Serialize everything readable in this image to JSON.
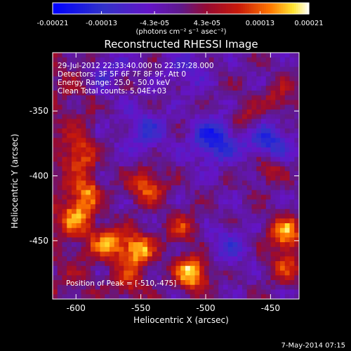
{
  "colorbar": {
    "ticks": [
      {
        "label": "-0.00021",
        "value": -0.00021
      },
      {
        "label": "-0.00013",
        "value": -0.00013
      },
      {
        "label": "-4.3e-05",
        "value": -4.3e-05
      },
      {
        "label": "4.3e-05",
        "value": 4.3e-05
      },
      {
        "label": "0.00013",
        "value": 0.00013
      },
      {
        "label": "0.00021",
        "value": 0.00021
      }
    ],
    "range": [
      -0.00021,
      0.00021
    ],
    "units": "(photons cm⁻² s⁻¹ asec⁻²)"
  },
  "chart_data": {
    "type": "heatmap",
    "title": "Reconstructed RHESSI Image",
    "xlabel": "Heliocentric X (arcsec)",
    "ylabel": "Heliocentric Y (arcsec)",
    "xlim": [
      -618,
      -428
    ],
    "ylim": [
      -495,
      -305
    ],
    "xticks": [
      {
        "label": "-600",
        "value": -600
      },
      {
        "label": "-550",
        "value": -550
      },
      {
        "label": "-500",
        "value": -500
      },
      {
        "label": "-450",
        "value": -450
      }
    ],
    "yticks": [
      {
        "label": "-350",
        "value": -350
      },
      {
        "label": "-400",
        "value": -400
      },
      {
        "label": "-450",
        "value": -450
      }
    ],
    "annotations": [
      "29-Jul-2012 22:33:40.000 to 22:37:28.000",
      "Detectors: 3F 5F 6F 7F 8F 9F, Att 0",
      "Energy Range: 25.0 - 50.0 keV",
      "Clean    Total counts: 5.04E+03"
    ],
    "peak_label": "Position of Peak = [-510,-475]",
    "hot_spots": [
      {
        "x": -510,
        "y": -475,
        "v": 1.0
      },
      {
        "x": -553,
        "y": -457,
        "v": 0.9
      },
      {
        "x": -575,
        "y": -452,
        "v": 0.75
      },
      {
        "x": -438,
        "y": -445,
        "v": 0.85
      },
      {
        "x": -600,
        "y": -432,
        "v": 0.65
      },
      {
        "x": -592,
        "y": -412,
        "v": 0.55
      },
      {
        "x": -545,
        "y": -408,
        "v": 0.7
      },
      {
        "x": -452,
        "y": -392,
        "v": 0.55
      },
      {
        "x": -438,
        "y": -470,
        "v": 0.5
      },
      {
        "x": -598,
        "y": -383,
        "v": 0.5
      },
      {
        "x": -518,
        "y": -440,
        "v": 0.45
      },
      {
        "x": -560,
        "y": -482,
        "v": 0.5
      },
      {
        "x": -470,
        "y": -357,
        "v": 0.4
      },
      {
        "x": -443,
        "y": -340,
        "v": 0.35
      }
    ],
    "cold_spots": [
      {
        "x": -493,
        "y": -372,
        "v": -0.75
      },
      {
        "x": -452,
        "y": -376,
        "v": -0.7
      },
      {
        "x": -547,
        "y": -365,
        "v": -0.45
      },
      {
        "x": -482,
        "y": -455,
        "v": -0.35
      },
      {
        "x": -515,
        "y": -318,
        "v": -0.3
      },
      {
        "x": -578,
        "y": -318,
        "v": -0.3
      }
    ]
  },
  "footer": "7-May-2014 07:15"
}
